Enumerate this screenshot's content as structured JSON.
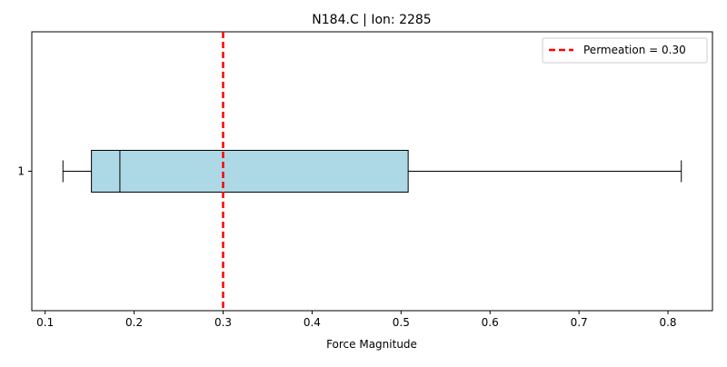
{
  "chart_data": {
    "type": "box",
    "title": "N184.C | Ion: 2285",
    "xlabel": "Force Magnitude",
    "ylabel": "",
    "orientation": "horizontal",
    "xlim": [
      0.085,
      0.85
    ],
    "xticks": [
      0.1,
      0.2,
      0.3,
      0.4,
      0.5,
      0.6,
      0.7,
      0.8
    ],
    "xtick_labels": [
      "0.1",
      "0.2",
      "0.3",
      "0.4",
      "0.5",
      "0.6",
      "0.7",
      "0.8"
    ],
    "categories": [
      "1"
    ],
    "boxes": [
      {
        "category": "1",
        "whisker_low": 0.12,
        "q1": 0.152,
        "median": 0.184,
        "q3": 0.508,
        "whisker_high": 0.815,
        "fill_color": "#add8e6"
      }
    ],
    "reference_line": {
      "value": 0.3,
      "label": "Permeation = 0.30",
      "color": "#ff0000",
      "style": "dashed"
    },
    "legend": {
      "position": "top-right",
      "entries": [
        "Permeation = 0.30"
      ]
    },
    "grid": false
  }
}
